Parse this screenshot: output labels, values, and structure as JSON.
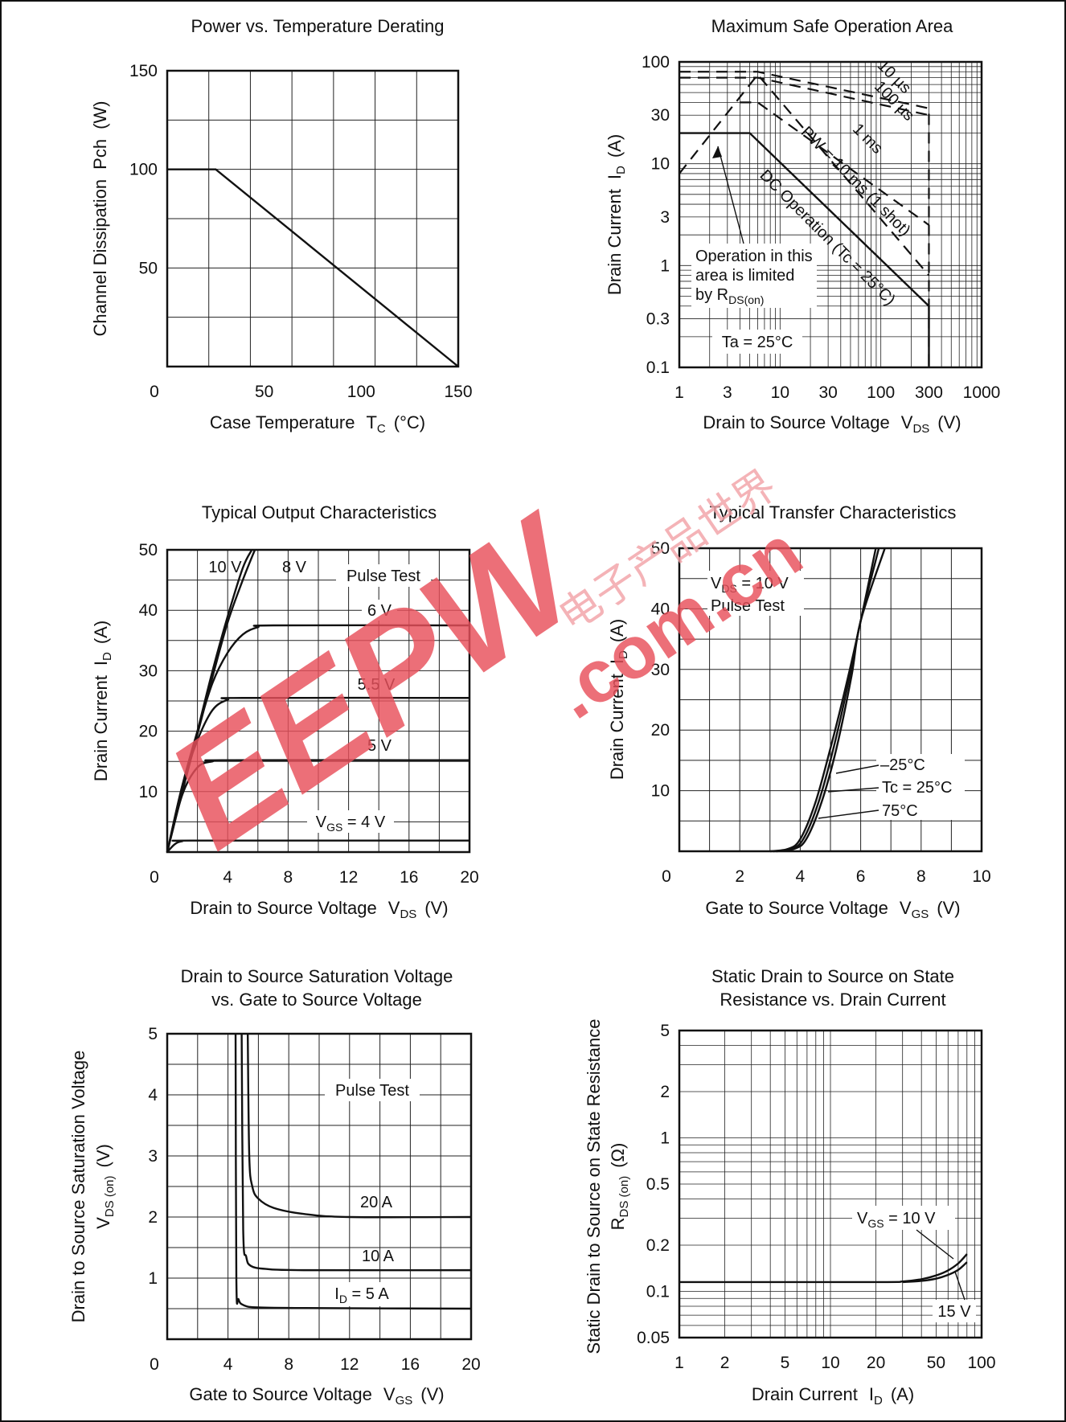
{
  "chart_data": [
    {
      "id": "derating",
      "type": "line",
      "title": "Power vs. Temperature Derating",
      "xlabel": "Case Temperature",
      "xsym": "T",
      "xsub": "C",
      "xunit": "(°C)",
      "ylabel": "Channel Dissipation",
      "ysym": "Pch",
      "yunit": "(W)",
      "xlim": [
        0,
        150
      ],
      "ylim": [
        0,
        150
      ],
      "xticks": [
        0,
        50,
        100,
        150
      ],
      "yticks": [
        50,
        100,
        150
      ],
      "x_origin_label": "0",
      "series": [
        {
          "x": [
            0,
            25,
            150
          ],
          "y": [
            100,
            100,
            0
          ]
        }
      ]
    },
    {
      "id": "soa",
      "type": "line",
      "title": "Maximum Safe Operation Area",
      "xlabel": "Drain to Source Voltage",
      "xsym": "V",
      "xsub": "DS",
      "xunit": "(V)",
      "ylabel": "Drain Current",
      "ysym": "I",
      "ysub": "D",
      "yunit": "(A)",
      "xscale": "log",
      "yscale": "log",
      "xlim": [
        1,
        1000
      ],
      "ylim": [
        0.1,
        100
      ],
      "xticks": [
        "1",
        "3",
        "10",
        "30",
        "100",
        "300",
        "1000"
      ],
      "yticks": [
        "0.1",
        "0.3",
        "1",
        "3",
        "10",
        "30",
        "100"
      ],
      "series": [
        {
          "label": "10 µs",
          "style": "dashed",
          "x": [
            1,
            6,
            6,
            300,
            300
          ],
          "y": [
            80,
            80,
            80,
            35,
            0.1
          ]
        },
        {
          "label": "100 µs",
          "style": "dashed",
          "x": [
            1,
            6,
            300
          ],
          "y": [
            70,
            70,
            30
          ]
        },
        {
          "label": "1 ms",
          "style": "dashed",
          "x": [
            4,
            6,
            300
          ],
          "y": [
            40,
            40,
            2.5
          ]
        },
        {
          "label": "PW = 10 ms (1 shot)",
          "style": "dashed",
          "x": [
            1,
            6,
            300
          ],
          "y": [
            8,
            75,
            0.8
          ]
        },
        {
          "label": "DC Operation (Tc = 25°C)",
          "style": "solid",
          "x": [
            1,
            5,
            300,
            300
          ],
          "y": [
            20,
            20,
            0.4,
            0.1
          ]
        }
      ],
      "annotations": {
        "limit_line1": "Operation in this",
        "limit_line2": "area is limited",
        "limit_line3": "by R",
        "limit_sub": "DS(on)",
        "ta": "Ta = 25°C"
      }
    },
    {
      "id": "output",
      "type": "line",
      "title": "Typical Output Characteristics",
      "xlabel": "Drain to Source Voltage",
      "xsym": "V",
      "xsub": "DS",
      "xunit": "(V)",
      "ylabel": "Drain Current",
      "ysym": "I",
      "ysub": "D",
      "yunit": "(A)",
      "xlim": [
        0,
        20
      ],
      "ylim": [
        0,
        50
      ],
      "xticks": [
        0,
        4,
        8,
        12,
        16,
        20
      ],
      "yticks": [
        10,
        20,
        30,
        40,
        50
      ],
      "x_origin_label": "0",
      "note": "Pulse Test",
      "series": [
        {
          "label": "10 V",
          "x": [
            0,
            1,
            2,
            3,
            4,
            5,
            5.6
          ],
          "y": [
            0,
            10,
            20,
            30,
            39,
            47,
            50
          ]
        },
        {
          "label": "8 V",
          "x": [
            0,
            1,
            2,
            3,
            4,
            5,
            5.8
          ],
          "y": [
            0,
            10,
            19.5,
            29,
            38,
            45,
            50
          ]
        },
        {
          "label": "6 V",
          "x": [
            0,
            1,
            2,
            3,
            4,
            5,
            6,
            7,
            20
          ],
          "y": [
            0,
            11,
            20,
            28,
            33,
            36,
            37.2,
            37.5,
            37.5
          ]
        },
        {
          "label": "5.5 V",
          "x": [
            0,
            1,
            2,
            3,
            4,
            5,
            20
          ],
          "y": [
            0,
            11,
            18.5,
            23.5,
            25.2,
            25.5,
            25.5
          ]
        },
        {
          "label": "5 V",
          "x": [
            0,
            1,
            2,
            3,
            4,
            20
          ],
          "y": [
            0,
            9.5,
            14,
            15,
            15.2,
            15.2
          ]
        },
        {
          "label": "V_GS = 4 V",
          "label_sym": "V",
          "label_sub": "GS",
          "label_rest": " = 4 V",
          "x": [
            0,
            0.5,
            1,
            2,
            20
          ],
          "y": [
            0,
            1.3,
            1.8,
            1.9,
            1.9
          ]
        }
      ]
    },
    {
      "id": "transfer",
      "type": "line",
      "title": "Typical Transfer Characteristics",
      "xlabel": "Gate to Source Voltage",
      "xsym": "V",
      "xsub": "GS",
      "xunit": "(V)",
      "ylabel": "Drain Current",
      "ysym": "I",
      "ysub": "D",
      "yunit": "(A)",
      "xlim": [
        0,
        10
      ],
      "ylim": [
        0,
        50
      ],
      "xticks": [
        0,
        2,
        4,
        6,
        8,
        10
      ],
      "yticks": [
        10,
        20,
        30,
        40,
        50
      ],
      "x_origin_label": "0",
      "note1_sym": "V",
      "note1_sub": "DS",
      "note1_rest": " = 10 V",
      "note2": "Pulse Test",
      "series": [
        {
          "label": "–25°C",
          "x": [
            3,
            3.6,
            4,
            4.5,
            5,
            5.5,
            6,
            6.5
          ],
          "y": [
            0,
            0.4,
            2,
            8,
            17,
            27,
            38,
            50
          ]
        },
        {
          "label": "Tc = 25°C",
          "x": [
            3.1,
            3.7,
            4.1,
            4.6,
            5.1,
            5.6,
            6,
            6.6
          ],
          "y": [
            0,
            0.4,
            2,
            8,
            17,
            28,
            38,
            50
          ]
        },
        {
          "label": "75°C",
          "x": [
            3.2,
            3.8,
            4.2,
            4.7,
            5.2,
            5.7,
            6,
            6.8
          ],
          "y": [
            0,
            0.4,
            2,
            8,
            17,
            29,
            38,
            50
          ]
        }
      ]
    },
    {
      "id": "vdson",
      "type": "line",
      "title_line1": "Drain to Source Saturation Voltage",
      "title_line2": "vs. Gate to Source Voltage",
      "xlabel": "Gate to Source Voltage",
      "xsym": "V",
      "xsub": "GS",
      "xunit": "(V)",
      "ylabel_line1": "Drain to Source Saturation Voltage",
      "ysym": "V",
      "ysub": "DS (on)",
      "yunit": "(V)",
      "xlim": [
        0,
        20
      ],
      "ylim": [
        0,
        5
      ],
      "xticks": [
        0,
        4,
        8,
        12,
        16,
        20
      ],
      "yticks": [
        1,
        2,
        3,
        4,
        5
      ],
      "x_origin_label": "0",
      "note": "Pulse Test",
      "series": [
        {
          "label": "20 A",
          "x": [
            5.3,
            5.4,
            5.6,
            6,
            7,
            9,
            12,
            20
          ],
          "y": [
            5,
            3.0,
            2.5,
            2.3,
            2.15,
            2.05,
            2.0,
            2.0
          ]
        },
        {
          "label": "10 A",
          "x": [
            4.9,
            5.0,
            5.2,
            5.5,
            6.5,
            9,
            20
          ],
          "y": [
            5,
            1.8,
            1.35,
            1.2,
            1.15,
            1.13,
            1.13
          ]
        },
        {
          "label": "I_D = 5 A",
          "label_sym": "I",
          "label_sub": "D",
          "label_rest": " = 5 A",
          "x": [
            4.5,
            4.55,
            4.7,
            5.1,
            6,
            9,
            20
          ],
          "y": [
            5,
            1.0,
            0.65,
            0.55,
            0.52,
            0.51,
            0.5
          ]
        }
      ]
    },
    {
      "id": "rdson",
      "type": "line",
      "title_line1": "Static Drain to Source on State",
      "title_line2": "Resistance vs. Drain Current",
      "xlabel": "Drain Current",
      "xsym": "I",
      "xsub": "D",
      "xunit": "(A)",
      "ylabel_line1": "Static Drain to Source on State Resistance",
      "ysym": "R",
      "ysub": "DS (on)",
      "yunit": "(Ω)",
      "xscale": "log",
      "yscale": "log",
      "xlim": [
        1,
        100
      ],
      "ylim": [
        0.05,
        5
      ],
      "xticks": [
        "1",
        "2",
        "5",
        "10",
        "20",
        "50",
        "100"
      ],
      "yticks": [
        "0.05",
        "0.1",
        "0.2",
        "0.5",
        "1",
        "2",
        "5"
      ],
      "series": [
        {
          "label": "V_GS = 10 V",
          "label_sym": "V",
          "label_sub": "GS",
          "label_rest": " = 10 V",
          "x": [
            1,
            20,
            30,
            40,
            50,
            60,
            70,
            80
          ],
          "y": [
            0.115,
            0.115,
            0.116,
            0.12,
            0.127,
            0.137,
            0.152,
            0.175
          ]
        },
        {
          "label": "15 V",
          "x": [
            30,
            40,
            50,
            60,
            70,
            80
          ],
          "y": [
            0.115,
            0.117,
            0.121,
            0.128,
            0.138,
            0.155
          ]
        }
      ]
    }
  ],
  "watermark": {
    "text1": "EEPW",
    "text2": ".com.cn",
    "text3": "电子产品世界"
  }
}
